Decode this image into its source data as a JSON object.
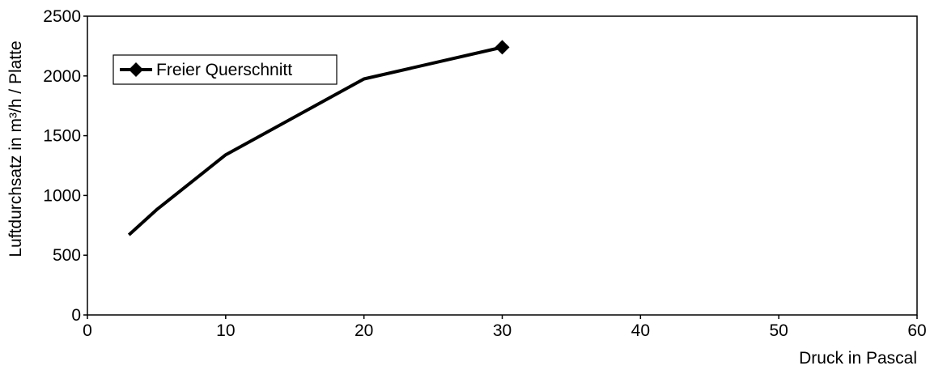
{
  "chart_data": {
    "type": "line",
    "title": "",
    "xlabel": "Druck in Pascal",
    "ylabel": "Luftdurchsatz in m³/h / Platte",
    "xlim": [
      0,
      60
    ],
    "ylim": [
      0,
      2500
    ],
    "x_ticks": [
      "0",
      "10",
      "20",
      "30",
      "40",
      "50",
      "60"
    ],
    "y_ticks": [
      "0",
      "500",
      "1000",
      "1500",
      "2000",
      "2500"
    ],
    "grid": false,
    "legend_position": "top-left",
    "series": [
      {
        "name": "Freier Querschnitt",
        "color": "#000000",
        "marker": "diamond",
        "x": [
          3,
          5,
          10,
          20,
          30
        ],
        "y": [
          670,
          880,
          1340,
          1975,
          2240
        ]
      }
    ]
  }
}
